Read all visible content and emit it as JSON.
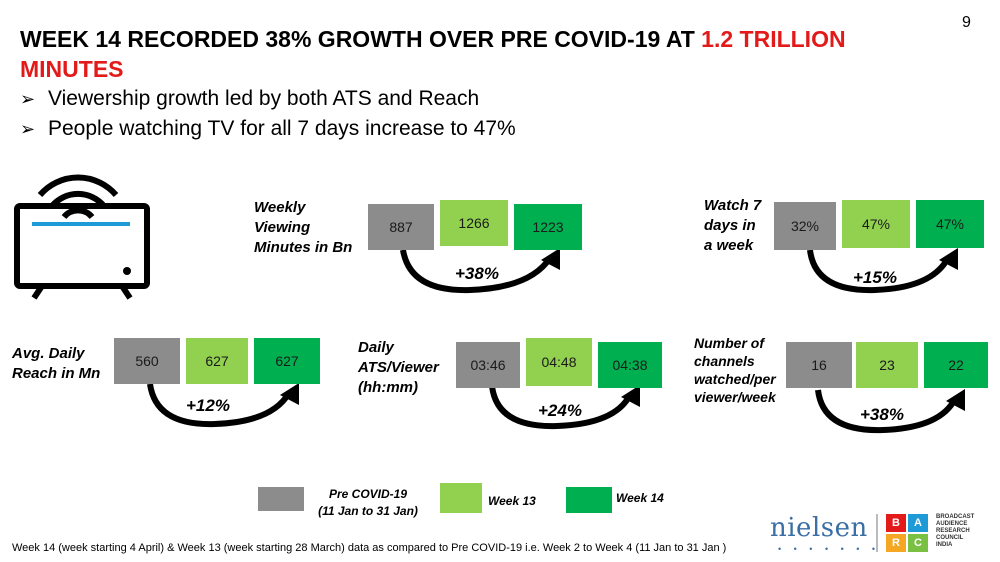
{
  "page_number": "9",
  "title": {
    "main": "WEEK 14 RECORDED 38% GROWTH OVER PRE COVID-19 AT ",
    "highlight": "1.2 TRILLION MINUTES",
    "highlight_color": "#e31a1a"
  },
  "bullets": [
    "Viewership growth led by both ATS and Reach",
    "People watching TV for all 7 days increase to 47%"
  ],
  "metrics": {
    "weekly_viewing": {
      "label": [
        "Weekly",
        "Viewing",
        "Minutes in Bn"
      ],
      "values": [
        "887",
        "1266",
        "1223"
      ],
      "growth": "+38%"
    },
    "watch_7_days": {
      "label": [
        "Watch 7",
        "days in",
        "a week"
      ],
      "values": [
        "32%",
        "47%",
        "47%"
      ],
      "growth": "+15%"
    },
    "avg_daily_reach": {
      "label": [
        "Avg. Daily",
        "Reach in Mn"
      ],
      "values": [
        "560",
        "627",
        "627"
      ],
      "growth": "+12%"
    },
    "daily_ats": {
      "label": [
        "Daily",
        "ATS/Viewer",
        "(hh:mm)"
      ],
      "values": [
        "03:46",
        "04:48",
        "04:38"
      ],
      "growth": "+24%"
    },
    "channels": {
      "label": [
        "Number of",
        "channels",
        "watched/per",
        "viewer/week"
      ],
      "values": [
        "16",
        "23",
        "22"
      ],
      "growth": "+38%"
    }
  },
  "legend": {
    "pre_covid": [
      "Pre COVID-19",
      "(11 Jan to 31 Jan)"
    ],
    "week13": "Week 13",
    "week14": "Week 14"
  },
  "colors": {
    "pre_covid": "#8c8c8c",
    "week13": "#92d050",
    "week14": "#00b050",
    "tv_accent": "#1e9bd7"
  },
  "footnote": "Week 14 (week starting 4 April) & Week 13 (week starting 28 March) data as compared to Pre COVID-19 i.e. Week 2 to Week 4 (11 Jan to 31 Jan )",
  "logos": {
    "nielsen": "nielsen",
    "barc_letters": [
      "B",
      "A",
      "R",
      "C"
    ],
    "barc_text": [
      "BROADCAST",
      "AUDIENCE",
      "RESEARCH",
      "COUNCIL",
      "INDIA"
    ]
  }
}
